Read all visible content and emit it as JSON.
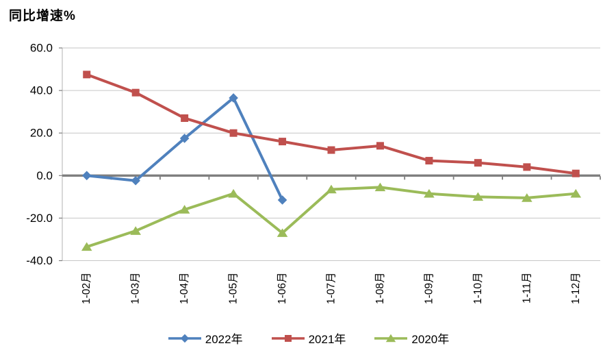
{
  "title": "同比增速%",
  "colors": {
    "grid": "#c6c6c6",
    "axis_line": "#bfbfbf",
    "zero_line": "#7f7f7f",
    "tick": "#7f7f7f",
    "text": "#000000",
    "background": "#ffffff"
  },
  "chart_data": {
    "type": "line",
    "title": "同比增速%",
    "categories": [
      "1-02月",
      "1-03月",
      "1-04月",
      "1-05月",
      "1-06月",
      "1-07月",
      "1-08月",
      "1-09月",
      "1-10月",
      "1-11月",
      "1-12月"
    ],
    "series": [
      {
        "name": "2022年",
        "marker": "diamond",
        "color": "#4F81BD",
        "values": [
          0.0,
          -2.4,
          17.5,
          36.5,
          -11.5,
          null,
          null,
          null,
          null,
          null,
          null
        ]
      },
      {
        "name": "2021年",
        "marker": "square",
        "color": "#C0504D",
        "values": [
          47.5,
          39.0,
          27.0,
          20.0,
          16.0,
          12.0,
          14.0,
          7.0,
          6.0,
          4.0,
          1.0
        ]
      },
      {
        "name": "2020年",
        "marker": "triangle",
        "color": "#9BBB59",
        "values": [
          -33.5,
          -26.0,
          -16.0,
          -8.5,
          -27.0,
          -6.5,
          -5.5,
          -8.5,
          -10.0,
          -10.5,
          -8.5
        ]
      }
    ],
    "ylabel": "同比增速%",
    "xlabel": "",
    "ylim": [
      -40,
      60
    ],
    "ytick_step": 20,
    "grid": true,
    "legend_position": "bottom"
  }
}
